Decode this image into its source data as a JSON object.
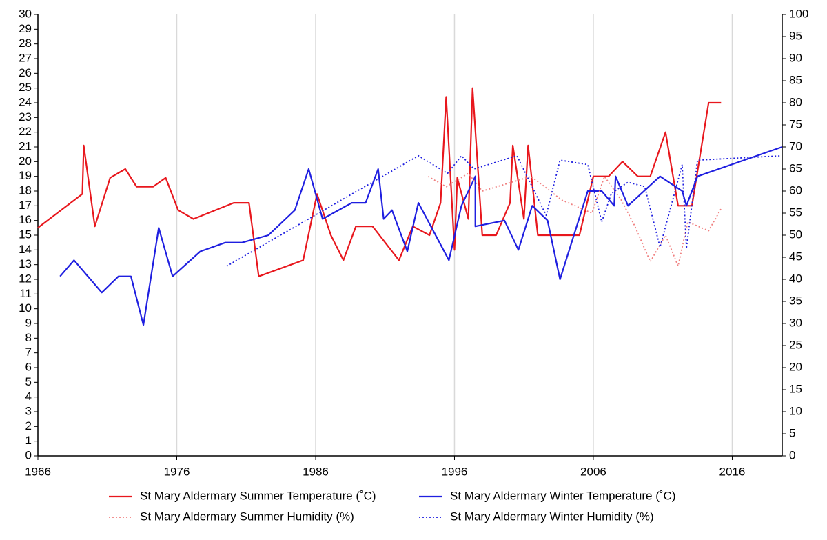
{
  "chart_data": {
    "type": "line",
    "xlim": [
      1966,
      2019.6
    ],
    "xticks": [
      1966,
      1976,
      1986,
      1996,
      2006,
      2016
    ],
    "ylim": [
      0,
      30
    ],
    "yticks": [
      0,
      1,
      2,
      3,
      4,
      5,
      6,
      7,
      8,
      9,
      10,
      11,
      12,
      13,
      14,
      15,
      16,
      17,
      18,
      19,
      20,
      21,
      22,
      23,
      24,
      25,
      26,
      27,
      28,
      29,
      30
    ],
    "y2lim": [
      0,
      100
    ],
    "y2ticks": [
      0,
      5,
      10,
      15,
      20,
      25,
      30,
      35,
      40,
      45,
      50,
      55,
      60,
      65,
      70,
      75,
      80,
      85,
      90,
      95,
      100
    ],
    "grid": true,
    "legend": "bottom",
    "series": [
      {
        "name": "St Mary Aldermary Summer Temperature (˚C)",
        "color": "#e8171d",
        "line_style": "solid",
        "x": [
          1966.0,
          1969.2,
          1969.3,
          1970.1,
          1971.2,
          1972.3,
          1973.1,
          1974.3,
          1975.2,
          1976.1,
          1977.2,
          1980.1,
          1981.2,
          1981.9,
          1985.1,
          1986.1,
          1987.1,
          1988.0,
          1988.9,
          1990.1,
          1992.0,
          1993.0,
          1994.2,
          1995.0,
          1995.4,
          1996.0,
          1996.2,
          1997.0,
          1997.3,
          1998.0,
          1999.0,
          2000.0,
          2000.2,
          2001.0,
          2001.3,
          2002.0,
          2005.0,
          2006.0,
          2007.1,
          2008.1,
          2009.2,
          2010.1,
          2011.2,
          2012.1,
          2013.1,
          2014.3,
          2015.2
        ],
        "values": [
          15.5,
          17.8,
          21.1,
          15.6,
          18.9,
          19.5,
          18.3,
          18.3,
          18.9,
          16.7,
          16.1,
          17.2,
          17.2,
          12.2,
          13.3,
          17.8,
          15.0,
          13.3,
          15.6,
          15.6,
          13.3,
          15.6,
          15.0,
          17.2,
          24.4,
          14.0,
          18.9,
          16.1,
          25.0,
          15.0,
          15.0,
          17.2,
          21.1,
          16.1,
          21.1,
          15.0,
          15.0,
          19.0,
          19.0,
          20.0,
          19.0,
          19.0,
          22.0,
          17.0,
          17.0,
          24.0,
          24.0
        ]
      },
      {
        "name": "St Mary Aldermary Winter Temperature (˚C)",
        "color": "#1f1fe0",
        "line_style": "solid",
        "x": [
          1967.6,
          1968.6,
          1970.6,
          1971.8,
          1972.7,
          1973.6,
          1974.7,
          1975.7,
          1977.7,
          1979.5,
          1980.7,
          1982.6,
          1984.5,
          1985.5,
          1986.5,
          1988.6,
          1989.6,
          1990.5,
          1990.9,
          1991.5,
          1992.6,
          1993.4,
          1995.6,
          1996.5,
          1997.5,
          1997.5,
          1999.6,
          2000.6,
          2001.6,
          2002.7,
          2003.6,
          2005.6,
          2006.6,
          2007.5,
          2007.6,
          2008.5,
          2010.8,
          2012.4,
          2012.7,
          2013.5,
          2019.6
        ],
        "values": [
          12.2,
          13.3,
          11.1,
          12.2,
          12.2,
          8.9,
          15.5,
          12.2,
          13.9,
          14.5,
          14.5,
          15.0,
          16.7,
          19.5,
          16.1,
          17.2,
          17.2,
          19.5,
          16.1,
          16.7,
          13.9,
          17.2,
          13.3,
          17.0,
          19.0,
          15.6,
          16.0,
          14.0,
          17.0,
          16.0,
          12.0,
          18.0,
          18.0,
          17.0,
          19.0,
          17.0,
          19.0,
          18.0,
          17.0,
          19.0,
          21.0
        ]
      },
      {
        "name": "St Mary Aldermary Summer Humidity (%)",
        "color": "#f08080",
        "line_style": "dotted",
        "axis": "y2",
        "x": [
          1994.1,
          1995.4,
          1997.0,
          1998.0,
          2001.5,
          2002.5,
          2003.7,
          2005.9,
          2006.8,
          2008.0,
          2009.0,
          2010.1,
          2011.2,
          2012.1,
          2012.8,
          2014.3,
          2015.2
        ],
        "values": [
          63.3,
          61,
          64,
          60,
          63.3,
          61,
          58,
          55,
          63.3,
          58,
          52,
          44,
          50,
          43,
          53,
          51,
          56
        ]
      },
      {
        "name": "St Mary Aldermary Winter Humidity (%)",
        "color": "#1f1fe0",
        "line_style": "dotted",
        "axis": "y2",
        "x": [
          1979.6,
          1993.4,
          1995.5,
          1996.5,
          1997.4,
          2000.5,
          2002.6,
          2003.6,
          2005.6,
          2006.6,
          2007.3,
          2008.5,
          2009.7,
          2010.8,
          2012.4,
          2012.7,
          2013.5,
          2019.6
        ],
        "values": [
          43,
          68,
          64,
          68,
          65,
          68,
          54.5,
          67,
          66,
          53,
          59.5,
          62,
          61,
          47.3,
          66,
          47,
          67,
          68
        ]
      }
    ]
  }
}
